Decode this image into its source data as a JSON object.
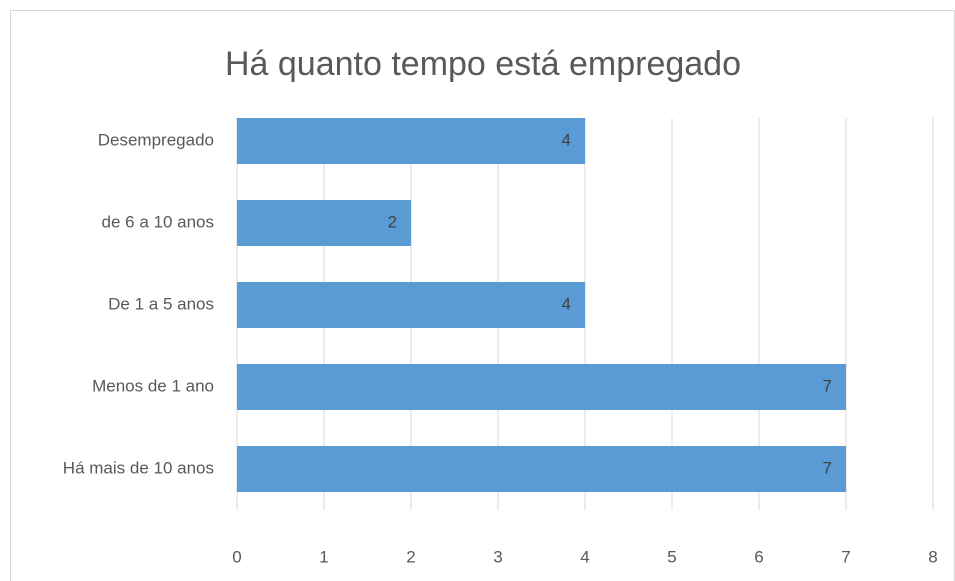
{
  "chart_data": {
    "type": "bar",
    "orientation": "horizontal",
    "title": "Há quanto tempo está empregado",
    "categories": [
      "Desempregado",
      "de 6 a 10 anos",
      "De 1 a 5 anos",
      "Menos de 1 ano",
      "Há mais de 10 anos"
    ],
    "values": [
      4,
      2,
      4,
      7,
      7
    ],
    "color": "#5b9bd5",
    "xlim": [
      0,
      8
    ],
    "xticks": [
      0,
      1,
      2,
      3,
      4,
      5,
      6,
      7,
      8
    ],
    "grid": true
  }
}
